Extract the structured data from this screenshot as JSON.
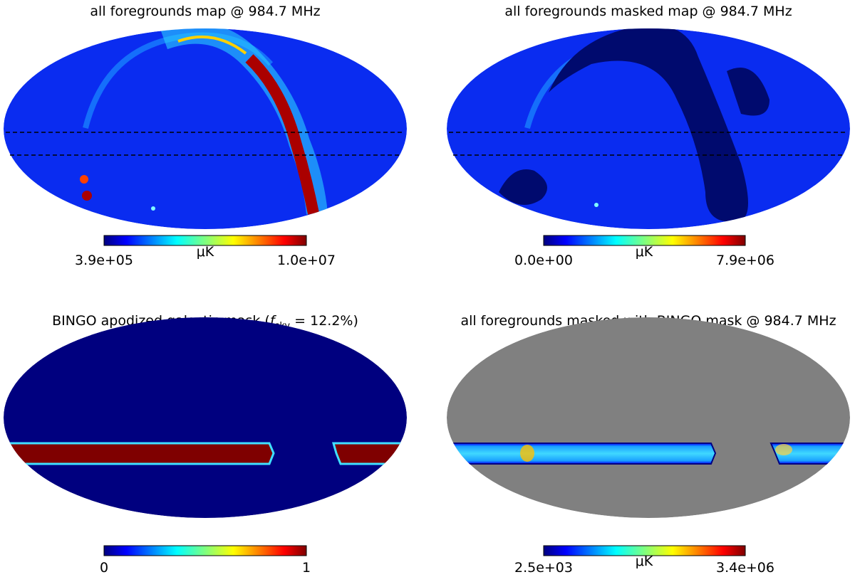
{
  "panels": [
    {
      "title": "all foregrounds map @ 984.7 MHz",
      "colorbar": {
        "min": "3.9e+05",
        "max": "1.0e+07",
        "unit": "μK"
      }
    },
    {
      "title": "all foregrounds masked map @ 984.7 MHz",
      "colorbar": {
        "min": "0.0e+00",
        "max": "7.9e+06",
        "unit": "μK"
      }
    },
    {
      "title_parts": {
        "before": "BINGO apodized galactic mask (",
        "symbol": "f",
        "subscript": "sky",
        "after": " = 12.2%)"
      },
      "colorbar": {
        "min": "0",
        "max": "1"
      }
    },
    {
      "title": "all foregrounds masked with BINGO mask @ 984.7 MHz",
      "colorbar": {
        "min": "2.5e+03",
        "max": "3.4e+06",
        "unit": "μK"
      }
    }
  ]
}
